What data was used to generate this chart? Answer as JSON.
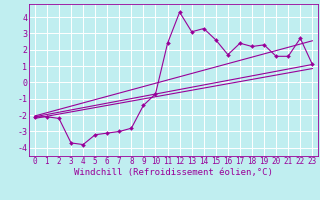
{
  "xlabel": "Windchill (Refroidissement éolien,°C)",
  "bg_color": "#c0eef0",
  "line_color": "#990099",
  "grid_color": "#ffffff",
  "xlim": [
    -0.5,
    23.5
  ],
  "ylim": [
    -4.5,
    4.8
  ],
  "xticks": [
    0,
    1,
    2,
    3,
    4,
    5,
    6,
    7,
    8,
    9,
    10,
    11,
    12,
    13,
    14,
    15,
    16,
    17,
    18,
    19,
    20,
    21,
    22,
    23
  ],
  "yticks": [
    -4,
    -3,
    -2,
    -1,
    0,
    1,
    2,
    3,
    4
  ],
  "series1_x": [
    0,
    1,
    2,
    3,
    4,
    5,
    6,
    7,
    8,
    9,
    10,
    11,
    12,
    13,
    14,
    15,
    16,
    17,
    18,
    19,
    20,
    21,
    22,
    23
  ],
  "series1_y": [
    -2.1,
    -2.1,
    -2.2,
    -3.7,
    -3.8,
    -3.2,
    -3.1,
    -3.0,
    -2.8,
    -1.4,
    -0.7,
    2.4,
    4.3,
    3.1,
    3.3,
    2.6,
    1.7,
    2.4,
    2.2,
    2.3,
    1.6,
    1.6,
    2.7,
    1.1
  ],
  "trend1_x": [
    0,
    23
  ],
  "trend1_y": [
    -2.1,
    1.1
  ],
  "trend2_x": [
    0,
    23
  ],
  "trend2_y": [
    -2.05,
    2.55
  ],
  "trend3_x": [
    0,
    23
  ],
  "trend3_y": [
    -2.2,
    0.85
  ],
  "tick_fontsize": 5.5,
  "label_fontsize": 6.5,
  "marker_size": 2.0,
  "line_width": 0.8
}
